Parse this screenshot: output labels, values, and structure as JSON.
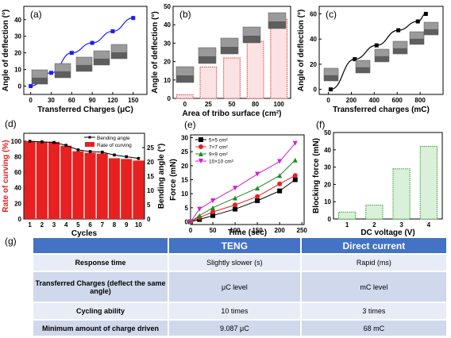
{
  "chart_data": [
    {
      "panel": "(a)",
      "type": "line",
      "xlabel": "Transferred Charges (μC)",
      "ylabel": "Angle of deflection (°)",
      "xlim": [
        -10,
        170
      ],
      "ylim": [
        -5,
        48
      ],
      "xticks": [
        0,
        30,
        60,
        90,
        120,
        150
      ],
      "yticks": [
        0,
        10,
        20,
        30,
        40
      ],
      "x": [
        0,
        30,
        60,
        90,
        120,
        150
      ],
      "values": [
        0,
        8,
        20,
        26,
        33,
        41
      ],
      "color": "#1a1aff"
    },
    {
      "panel": "(b)",
      "type": "bar",
      "xlabel": "Area of tribo surface (cm²)",
      "ylabel": "Angle of deflection (°)",
      "ylim": [
        0,
        50
      ],
      "yticks": [
        0,
        10,
        20,
        30,
        40,
        50
      ],
      "categories": [
        "0",
        "25",
        "50",
        "80",
        "100"
      ],
      "values": [
        2,
        17,
        22,
        31,
        43
      ],
      "color": "#e03c3c"
    },
    {
      "panel": "(c)",
      "type": "line",
      "xlabel": "Transferred charges (mC)",
      "ylabel": "Angle of deflection (°)",
      "xlim": [
        -80,
        1000
      ],
      "ylim": [
        -4,
        66
      ],
      "xticks": [
        0,
        200,
        400,
        600,
        800
      ],
      "yticks": [
        0,
        20,
        40,
        60
      ],
      "x": [
        20,
        230,
        420,
        610,
        780,
        850
      ],
      "values": [
        0,
        24,
        35,
        47,
        54,
        60
      ],
      "color": "#000000"
    },
    {
      "panel": "(d)",
      "type": "bar",
      "xlabel": "Cycles",
      "ylabel": "Rate of curving (%)",
      "y2label": "Bending angle (°)",
      "ylim": [
        0,
        110
      ],
      "y2lim": [
        0,
        30
      ],
      "yticks": [
        0,
        20,
        40,
        60,
        80,
        100
      ],
      "y2ticks": [
        0,
        5,
        10,
        15,
        20,
        25
      ],
      "categories": [
        "1",
        "2",
        "3",
        "4",
        "5",
        "6",
        "7",
        "8",
        "9",
        "10"
      ],
      "series": [
        {
          "name": "Rate of curving",
          "values": [
            100,
            99,
            99,
            94,
            87,
            85,
            84,
            78,
            77,
            75
          ],
          "color": "#e82020"
        },
        {
          "name": "Bending angle",
          "values": [
            27.2,
            27.0,
            26.8,
            25.8,
            24.2,
            23.6,
            23.4,
            22.4,
            21.8,
            21.2
          ],
          "color": "#000000"
        }
      ],
      "legend": "top-right"
    },
    {
      "panel": "(e)",
      "type": "line",
      "xlabel": "Time (sec)",
      "ylabel": "Force (mN)",
      "xlim": [
        0,
        255
      ],
      "ylim": [
        -1,
        31
      ],
      "xticks": [
        0,
        50,
        100,
        150,
        200,
        250
      ],
      "yticks": [
        0,
        5,
        10,
        15,
        20,
        25,
        30
      ],
      "x": [
        0,
        20,
        50,
        100,
        150,
        200,
        235
      ],
      "series": [
        {
          "name": "5×5 cm²",
          "values": [
            0,
            0.8,
            2.2,
            4.5,
            7.5,
            11,
            15
          ],
          "color": "#000000",
          "marker": "square"
        },
        {
          "name": "7×7 cm²",
          "values": [
            0,
            1.5,
            3.5,
            6.0,
            9.0,
            13.5,
            16.5
          ],
          "color": "#e82020",
          "marker": "circle"
        },
        {
          "name": "9×9 cm²",
          "values": [
            0,
            2.2,
            5.0,
            8.5,
            12.0,
            16.5,
            22.0
          ],
          "color": "#1f8a1f",
          "marker": "triangle"
        },
        {
          "name": "10×10 cm²",
          "values": [
            0,
            4.5,
            7.5,
            12.0,
            17.0,
            21.5,
            28.0
          ],
          "color": "#d020d0",
          "marker": "triangle-down"
        }
      ],
      "legend": "top-left"
    },
    {
      "panel": "(f)",
      "type": "bar",
      "xlabel": "DC voltage (V)",
      "ylabel": "Blocking force (mN)",
      "ylim": [
        0,
        50
      ],
      "yticks": [
        0,
        10,
        20,
        30,
        40,
        50
      ],
      "categories": [
        "1",
        "2",
        "3",
        "4"
      ],
      "values": [
        4,
        8,
        29,
        42
      ],
      "color": "#3aa03a"
    }
  ],
  "table": {
    "letter": "(g)",
    "headers": [
      "",
      "TENG",
      "Direct current"
    ],
    "rows": [
      [
        "Response time",
        "Slightly slower (s)",
        "Rapid  (ms)"
      ],
      [
        "Transferred Charges (deflect the same angle)",
        "μC   level",
        "mC level"
      ],
      [
        "Cycling ability",
        "10 times",
        "3 times"
      ],
      [
        "Minimum amount of charge driven",
        "9.087  μC",
        "68  mC"
      ]
    ]
  }
}
